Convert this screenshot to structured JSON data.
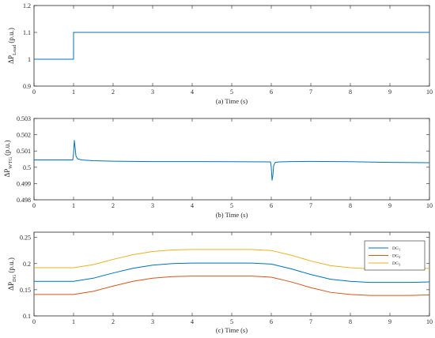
{
  "chart_data": [
    {
      "type": "line",
      "xlabel": "(a) Time (s)",
      "ylabel": {
        "main": "ΔP",
        "sub": "Load",
        "unit": "(p.u.)"
      },
      "xlim": [
        0,
        10
      ],
      "ylim": [
        0.9,
        1.2
      ],
      "xticks": [
        "0",
        "1",
        "2",
        "3",
        "4",
        "5",
        "6",
        "7",
        "8",
        "9",
        "10"
      ],
      "yticks": [
        "0.9",
        "1",
        "1.1",
        "1.2"
      ],
      "grid": false,
      "series": [
        {
          "color": "#0072BD",
          "x": [
            0,
            1,
            1,
            10
          ],
          "y": [
            1.0,
            1.0,
            1.1,
            1.1
          ]
        }
      ]
    },
    {
      "type": "line",
      "xlabel": "(b) Time (s)",
      "ylabel": {
        "main": "ΔP",
        "sub": "WTG",
        "unit": "(p.u.)"
      },
      "xlim": [
        0,
        10
      ],
      "ylim": [
        0.498,
        0.503
      ],
      "xticks": [
        "0",
        "1",
        "2",
        "3",
        "4",
        "5",
        "6",
        "7",
        "8",
        "9",
        "10"
      ],
      "yticks": [
        "0.498",
        "0.499",
        "0.5",
        "0.501",
        "0.502",
        "0.503"
      ],
      "grid": false,
      "series": [
        {
          "color": "#0072BD",
          "x": [
            0,
            0.5,
            0.98,
            1.0,
            1.02,
            1.04,
            1.06,
            1.1,
            1.2,
            1.5,
            2,
            3,
            4,
            5,
            5.98,
            6.0,
            6.02,
            6.04,
            6.06,
            6.1,
            6.2,
            6.5,
            7,
            8,
            9,
            10
          ],
          "y": [
            0.50045,
            0.50045,
            0.50045,
            0.50085,
            0.50165,
            0.5012,
            0.5007,
            0.50052,
            0.50045,
            0.5004,
            0.50037,
            0.50035,
            0.50035,
            0.50034,
            0.50033,
            0.5,
            0.4992,
            0.4995,
            0.5001,
            0.5003,
            0.50033,
            0.50035,
            0.50036,
            0.50034,
            0.5003,
            0.50028
          ]
        }
      ]
    },
    {
      "type": "line",
      "xlabel": "(c) Time (s)",
      "ylabel": {
        "main": "ΔP",
        "sub": "DG",
        "unit": "(p.u.)"
      },
      "xlim": [
        0,
        10
      ],
      "ylim": [
        0.1,
        0.26
      ],
      "xticks": [
        "0",
        "1",
        "2",
        "3",
        "4",
        "5",
        "6",
        "7",
        "8",
        "9",
        "10"
      ],
      "yticks": [
        "0.1",
        "0.15",
        "0.2",
        "0.25"
      ],
      "grid": false,
      "legend": "top-right",
      "series": [
        {
          "name": "DG",
          "sub": "1",
          "color": "#0072BD",
          "x": [
            0,
            1,
            1.5,
            2,
            2.5,
            3,
            3.5,
            4,
            4.5,
            5,
            5.5,
            6,
            6.5,
            7,
            7.5,
            8,
            8.5,
            9,
            9.5,
            10
          ],
          "y": [
            0.166,
            0.166,
            0.172,
            0.182,
            0.191,
            0.197,
            0.2,
            0.201,
            0.201,
            0.201,
            0.201,
            0.199,
            0.19,
            0.179,
            0.17,
            0.166,
            0.164,
            0.164,
            0.164,
            0.165
          ]
        },
        {
          "name": "DG",
          "sub": "2",
          "color": "#D95319",
          "x": [
            0,
            1,
            1.5,
            2,
            2.5,
            3,
            3.5,
            4,
            4.5,
            5,
            5.5,
            6,
            6.5,
            7,
            7.5,
            8,
            8.5,
            9,
            9.5,
            10
          ],
          "y": [
            0.141,
            0.141,
            0.147,
            0.157,
            0.166,
            0.172,
            0.175,
            0.176,
            0.176,
            0.176,
            0.176,
            0.174,
            0.165,
            0.154,
            0.145,
            0.141,
            0.139,
            0.139,
            0.139,
            0.14
          ]
        },
        {
          "name": "DG",
          "sub": "3",
          "color": "#EDB120",
          "x": [
            0,
            1,
            1.5,
            2,
            2.5,
            3,
            3.5,
            4,
            4.5,
            5,
            5.5,
            6,
            6.5,
            7,
            7.5,
            8,
            8.5,
            9,
            9.5,
            10
          ],
          "y": [
            0.192,
            0.192,
            0.198,
            0.208,
            0.217,
            0.223,
            0.226,
            0.227,
            0.227,
            0.227,
            0.227,
            0.225,
            0.216,
            0.205,
            0.196,
            0.192,
            0.19,
            0.19,
            0.19,
            0.191
          ]
        }
      ]
    }
  ]
}
